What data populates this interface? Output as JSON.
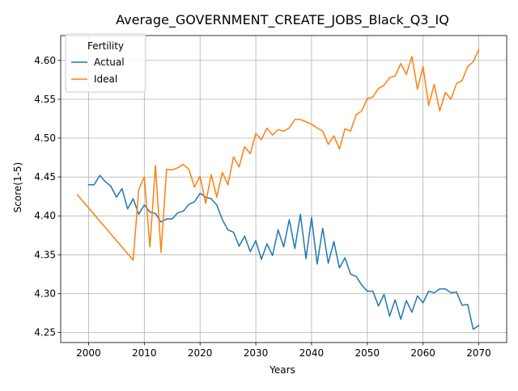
{
  "chart_data": {
    "type": "line",
    "title": "Average_GOVERNMENT_CREATE_JOBS_Black_Q3_IQ",
    "xlabel": "Years",
    "ylabel": "Score(1-5)",
    "xlim": [
      1995,
      2075
    ],
    "ylim": [
      4.237,
      4.632
    ],
    "xticks": [
      2000,
      2010,
      2020,
      2030,
      2040,
      2050,
      2060,
      2070
    ],
    "yticks": [
      4.25,
      4.3,
      4.35,
      4.4,
      4.45,
      4.5,
      4.55,
      4.6
    ],
    "xtick_labels": [
      "2000",
      "2010",
      "2020",
      "2030",
      "2040",
      "2050",
      "2060",
      "2070"
    ],
    "ytick_labels": [
      "4.25",
      "4.30",
      "4.35",
      "4.40",
      "4.45",
      "4.50",
      "4.55",
      "4.60"
    ],
    "grid": true,
    "legend": {
      "title": "Fertility",
      "placement": "upper-left"
    },
    "series": [
      {
        "name": "Actual",
        "color": "#1f77b4",
        "x": [
          2000,
          2001,
          2002,
          2003,
          2004,
          2005,
          2006,
          2007,
          2008,
          2009,
          2010,
          2011,
          2012,
          2013,
          2014,
          2015,
          2016,
          2017,
          2018,
          2019,
          2020,
          2021,
          2022,
          2023,
          2024,
          2025,
          2026,
          2027,
          2028,
          2029,
          2030,
          2031,
          2032,
          2033,
          2034,
          2035,
          2036,
          2037,
          2038,
          2039,
          2040,
          2041,
          2042,
          2043,
          2044,
          2045,
          2046,
          2047,
          2048,
          2049,
          2050,
          2051,
          2052,
          2053,
          2054,
          2055,
          2056,
          2057,
          2058,
          2059,
          2060,
          2061,
          2062,
          2063,
          2064,
          2065,
          2066,
          2067,
          2068,
          2069,
          2070
        ],
        "y": [
          4.44,
          4.44,
          4.452,
          4.444,
          4.438,
          4.424,
          4.435,
          4.409,
          4.422,
          4.402,
          4.414,
          4.405,
          4.403,
          4.392,
          4.396,
          4.396,
          4.404,
          4.406,
          4.415,
          4.418,
          4.429,
          4.424,
          4.422,
          4.414,
          4.395,
          4.382,
          4.379,
          4.361,
          4.374,
          4.354,
          4.368,
          4.344,
          4.364,
          4.349,
          4.382,
          4.36,
          4.395,
          4.358,
          4.402,
          4.345,
          4.398,
          4.338,
          4.384,
          4.339,
          4.367,
          4.333,
          4.346,
          4.325,
          4.322,
          4.311,
          4.303,
          4.303,
          4.284,
          4.299,
          4.271,
          4.292,
          4.267,
          4.291,
          4.276,
          4.297,
          4.288,
          4.303,
          4.301,
          4.306,
          4.306,
          4.301,
          4.302,
          4.285,
          4.286,
          4.254,
          4.259
        ]
      },
      {
        "name": "Ideal",
        "color": "#ff7f0e",
        "x": [
          1998,
          2008,
          2009,
          2010,
          2011,
          2012,
          2013,
          2014,
          2015,
          2016,
          2017,
          2018,
          2019,
          2020,
          2021,
          2022,
          2023,
          2024,
          2025,
          2026,
          2027,
          2028,
          2029,
          2030,
          2031,
          2032,
          2033,
          2034,
          2035,
          2036,
          2037,
          2038,
          2039,
          2040,
          2041,
          2042,
          2043,
          2044,
          2045,
          2046,
          2047,
          2048,
          2049,
          2050,
          2051,
          2052,
          2053,
          2054,
          2055,
          2056,
          2057,
          2058,
          2059,
          2060,
          2061,
          2062,
          2063,
          2064,
          2065,
          2066,
          2067,
          2068,
          2069,
          2070
        ],
        "y": [
          4.427,
          4.343,
          4.434,
          4.45,
          4.36,
          4.465,
          4.353,
          4.46,
          4.459,
          4.462,
          4.466,
          4.46,
          4.437,
          4.451,
          4.416,
          4.453,
          4.424,
          4.456,
          4.44,
          4.476,
          4.463,
          4.489,
          4.48,
          4.506,
          4.498,
          4.513,
          4.504,
          4.511,
          4.509,
          4.513,
          4.524,
          4.524,
          4.521,
          4.518,
          4.513,
          4.509,
          4.492,
          4.503,
          4.486,
          4.512,
          4.509,
          4.53,
          4.535,
          4.551,
          4.553,
          4.564,
          4.568,
          4.578,
          4.58,
          4.596,
          4.582,
          4.605,
          4.563,
          4.592,
          4.542,
          4.569,
          4.535,
          4.559,
          4.55,
          4.57,
          4.574,
          4.592,
          4.598,
          4.614
        ]
      }
    ]
  }
}
